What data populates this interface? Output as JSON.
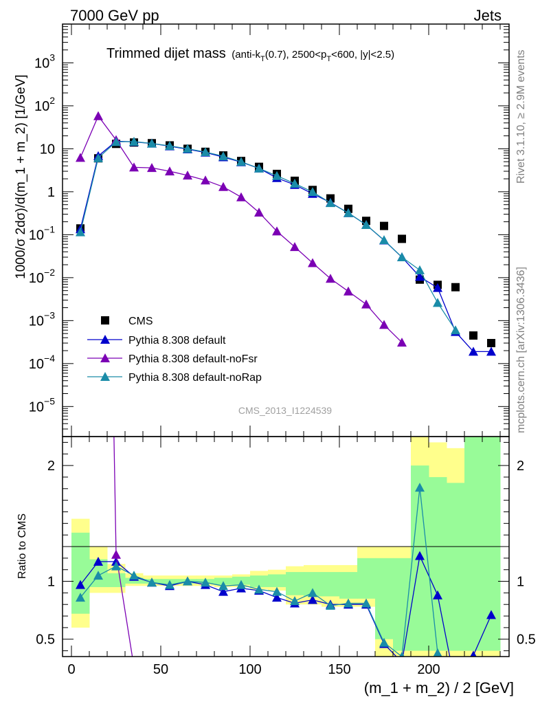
{
  "header": {
    "left": "7000 GeV pp",
    "right": "Jets"
  },
  "side_labels": {
    "rivet": "Rivet 3.1.10, ≥ 2.9M events",
    "mcplots": "mcplots.cern.ch [arXiv:1306.3436]"
  },
  "watermark": "CMS_2013_I1224539",
  "colors": {
    "cms": "#000000",
    "default": "#0000cc",
    "noFsr": "#7b00b4",
    "noRap": "#1a8ca8",
    "band_yellow": "#ffff8c",
    "band_green": "#98fb98"
  },
  "chart_data": [
    {
      "type": "scatter",
      "panel": "main",
      "title": "Trimmed dijet mass",
      "title_detail": {
        "prefix": "(anti-k",
        "sub1": "T",
        "mid1": "(0.7), 2500<p",
        "sub2": "T",
        "suffix": "<600, |y|<2.5)"
      },
      "ylabel": "1000/σ 2dσ)/d(m_1 + m_2) [1/GeV]",
      "yscale": "log",
      "ylim": [
        2e-06,
        8000
      ],
      "xlim": [
        -5,
        245
      ],
      "ytick_labels": [
        {
          "value": 1000,
          "base": "10",
          "exp": "3"
        },
        {
          "value": 100,
          "base": "10",
          "exp": "2"
        },
        {
          "value": 10,
          "base": "10",
          "exp": ""
        },
        {
          "value": 1,
          "base": "1",
          "exp": ""
        },
        {
          "value": 0.1,
          "base": "10",
          "exp": "−1"
        },
        {
          "value": 0.01,
          "base": "10",
          "exp": "−2"
        },
        {
          "value": 0.001,
          "base": "10",
          "exp": "−3"
        },
        {
          "value": 0.0001,
          "base": "10",
          "exp": "−4"
        },
        {
          "value": 1e-05,
          "base": "10",
          "exp": "−5"
        }
      ],
      "legend_placement": "lower-left",
      "series": [
        {
          "name": "CMS",
          "marker": "square",
          "line": false,
          "x": [
            5,
            15,
            25,
            35,
            45,
            55,
            65,
            75,
            85,
            95,
            105,
            115,
            125,
            135,
            145,
            155,
            165,
            175,
            185,
            195,
            205,
            215,
            225,
            235
          ],
          "y": [
            0.14,
            6.0,
            13.0,
            14.0,
            13.5,
            12.0,
            10.0,
            8.5,
            7.0,
            5.2,
            3.8,
            2.6,
            1.8,
            1.1,
            0.7,
            0.4,
            0.21,
            0.16,
            0.08,
            0.009,
            0.0068,
            0.006,
            0.00045,
            0.0003
          ]
        },
        {
          "name": "Pythia 8.308 default",
          "marker": "triangle",
          "line": true,
          "x": [
            5,
            15,
            25,
            35,
            45,
            55,
            65,
            75,
            85,
            95,
            105,
            115,
            125,
            135,
            145,
            155,
            165,
            175,
            185,
            195,
            205,
            215,
            225,
            235
          ],
          "y": [
            0.135,
            6.8,
            15.0,
            14.5,
            13.3,
            11.5,
            9.8,
            8.2,
            6.4,
            4.9,
            3.5,
            2.1,
            1.45,
            0.9,
            0.56,
            0.32,
            0.17,
            0.074,
            0.03,
            0.0105,
            0.0058,
            0.00055,
            0.00019,
            0.00019
          ]
        },
        {
          "name": "Pythia 8.308 default-noFsr",
          "marker": "triangle",
          "line": true,
          "x": [
            5,
            15,
            25,
            35,
            45,
            55,
            65,
            75,
            85,
            95,
            105,
            115,
            125,
            135,
            145,
            155,
            165,
            175,
            185
          ],
          "y": [
            6.2,
            58.0,
            16.0,
            3.7,
            3.6,
            3.0,
            2.4,
            1.85,
            1.3,
            0.75,
            0.33,
            0.12,
            0.052,
            0.022,
            0.0095,
            0.0048,
            0.0024,
            0.0008,
            0.00031
          ]
        },
        {
          "name": "Pythia 8.308 default-noRap",
          "marker": "triangle",
          "line": true,
          "x": [
            5,
            15,
            25,
            35,
            45,
            55,
            65,
            75,
            85,
            95,
            105,
            115,
            125,
            135,
            145,
            155,
            165,
            175,
            185,
            195,
            205,
            215
          ],
          "y": [
            0.115,
            6.1,
            14.5,
            14.7,
            13.3,
            11.7,
            10.0,
            8.4,
            6.7,
            5.0,
            3.5,
            2.35,
            1.55,
            0.99,
            0.55,
            0.32,
            0.17,
            0.075,
            0.03,
            0.015,
            0.0026,
            0.0006
          ]
        }
      ]
    },
    {
      "type": "line",
      "panel": "ratio",
      "xlabel": "(m_1 + m_2) / 2 [GeV]",
      "ylabel": "Ratio to CMS",
      "ylim": [
        0.35,
        2.25
      ],
      "xlim": [
        -5,
        245
      ],
      "x_ticks": [
        0,
        50,
        100,
        150,
        200
      ],
      "x_tick_labels": [
        "0",
        "50",
        "100",
        "150",
        "200"
      ],
      "y_ticks": [
        0.5,
        1,
        2
      ],
      "y_tick_labels": [
        "0.5",
        "1",
        "2"
      ],
      "bands": {
        "x_edges": [
          0,
          10,
          20,
          30,
          40,
          50,
          60,
          70,
          80,
          90,
          100,
          110,
          120,
          130,
          140,
          150,
          160,
          170,
          180,
          190,
          200,
          210,
          220,
          230,
          240
        ],
        "yellow_lo": [
          0.6,
          0.9,
          0.9,
          0.96,
          0.96,
          0.96,
          0.96,
          0.96,
          0.95,
          0.95,
          0.93,
          0.92,
          0.8,
          0.8,
          0.78,
          0.78,
          0.78,
          0.35,
          0.35,
          0.35,
          0.35,
          0.35,
          0.35,
          0.35
        ],
        "yellow_hi": [
          1.54,
          1.3,
          1.15,
          1.07,
          1.05,
          1.05,
          1.05,
          1.05,
          1.05,
          1.06,
          1.09,
          1.1,
          1.13,
          1.14,
          1.14,
          1.14,
          1.3,
          1.3,
          1.3,
          2.25,
          2.2,
          2.15,
          2.25,
          2.25
        ],
        "green_lo": [
          0.72,
          0.95,
          0.95,
          0.98,
          0.98,
          0.98,
          0.98,
          0.98,
          0.97,
          0.97,
          0.95,
          0.95,
          0.88,
          0.87,
          0.87,
          0.85,
          0.85,
          0.5,
          0.4,
          0.4,
          0.4,
          0.4,
          0.4,
          0.4
        ],
        "green_hi": [
          1.42,
          1.19,
          1.07,
          1.03,
          1.02,
          1.02,
          1.02,
          1.02,
          1.03,
          1.04,
          1.05,
          1.06,
          1.08,
          1.08,
          1.08,
          1.08,
          1.2,
          1.2,
          1.2,
          2.0,
          1.9,
          1.85,
          2.25,
          2.25
        ]
      },
      "series": [
        {
          "name": "Pythia 8.308 default",
          "x": [
            5,
            15,
            25,
            35,
            45,
            55,
            65,
            75,
            85,
            95,
            105,
            115,
            125,
            135,
            145,
            155,
            165,
            175,
            185,
            195,
            205,
            215,
            225,
            235
          ],
          "y": [
            0.97,
            1.17,
            1.17,
            1.04,
            0.99,
            0.96,
            1.0,
            0.97,
            0.91,
            0.94,
            0.92,
            0.86,
            0.81,
            0.84,
            0.8,
            0.8,
            0.8,
            0.46,
            0.3,
            1.22,
            0.88,
            0.1,
            0.36,
            0.71
          ]
        },
        {
          "name": "Pythia 8.308 default-noFsr",
          "x": [
            5,
            15,
            25,
            35,
            45,
            55,
            65,
            75,
            85,
            95,
            105,
            115,
            125,
            135,
            145,
            155,
            165,
            175,
            185
          ],
          "y": [
            44,
            9.7,
            1.23,
            0.26,
            0.27,
            0.25,
            0.24,
            0.22,
            0.19,
            0.14,
            0.09,
            0.05,
            0.03,
            0.02,
            0.014,
            0.012,
            0.011,
            0.005,
            0.004
          ]
        },
        {
          "name": "Pythia 8.308 default-noRap",
          "x": [
            5,
            15,
            25,
            35,
            45,
            55,
            65,
            75,
            85,
            95,
            105,
            115,
            125,
            135,
            145,
            155,
            165,
            175,
            185,
            195,
            205,
            215
          ],
          "y": [
            0.86,
            1.05,
            1.13,
            1.05,
            0.99,
            0.97,
            1.0,
            0.99,
            0.96,
            0.97,
            0.93,
            0.91,
            0.83,
            0.9,
            0.79,
            0.81,
            0.81,
            0.47,
            0.35,
            1.81,
            0.38,
            0.1
          ]
        }
      ]
    }
  ]
}
